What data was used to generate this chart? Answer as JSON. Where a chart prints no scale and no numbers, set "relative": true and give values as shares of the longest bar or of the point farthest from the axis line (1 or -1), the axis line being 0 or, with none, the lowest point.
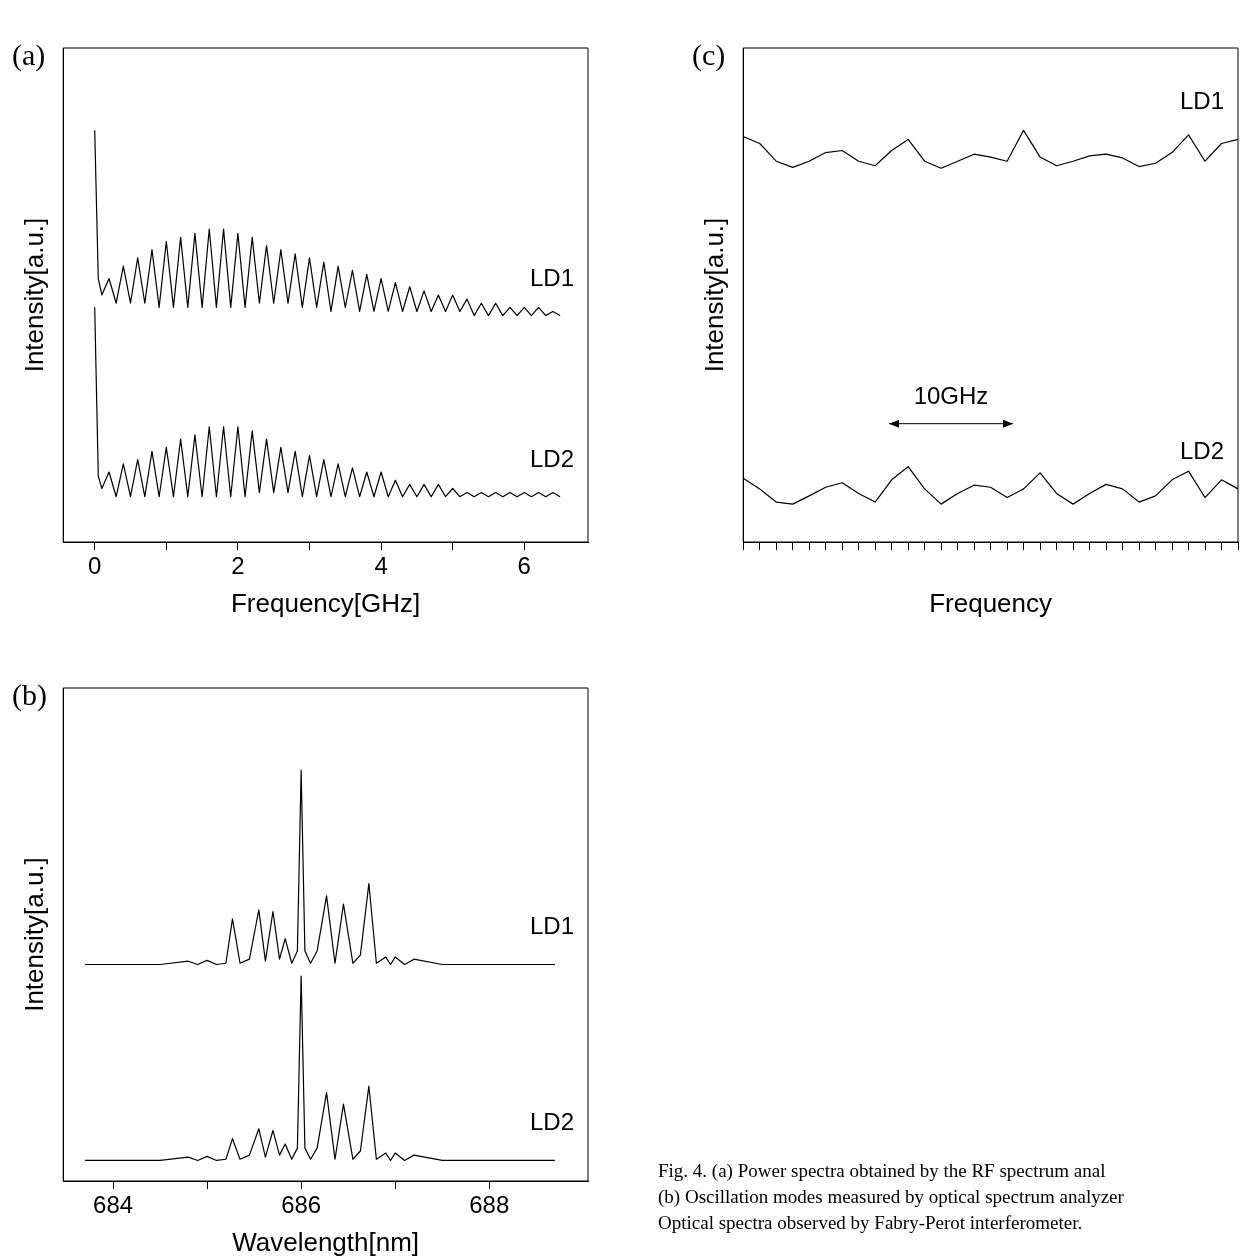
{
  "chart_data": [
    {
      "type": "line",
      "title": "(a)",
      "xlabel": "Frequency[GHz]",
      "ylabel": "Intensity[a.u.]",
      "relative": true,
      "xlim": [
        -0.44,
        6.89
      ],
      "xticks": [
        0,
        {
          "value": 1,
          "label": null
        },
        2,
        {
          "value": 3,
          "label": null
        },
        4,
        {
          "value": 5,
          "label": null
        },
        6
      ],
      "x": [
        0,
        0.05,
        0.1,
        0.2,
        0.3,
        0.4,
        0.5,
        0.6,
        0.7,
        0.8,
        0.9,
        1.0,
        1.1,
        1.2,
        1.3,
        1.4,
        1.5,
        1.6,
        1.7,
        1.8,
        1.9,
        2.0,
        2.1,
        2.2,
        2.3,
        2.4,
        2.5,
        2.6,
        2.7,
        2.8,
        2.9,
        3.0,
        3.1,
        3.2,
        3.3,
        3.4,
        3.5,
        3.6,
        3.7,
        3.8,
        3.9,
        4.0,
        4.1,
        4.2,
        4.3,
        4.4,
        4.5,
        4.6,
        4.7,
        4.8,
        4.9,
        5.0,
        5.1,
        5.2,
        5.3,
        5.4,
        5.5,
        5.6,
        5.7,
        5.8,
        5.9,
        6.0,
        6.1,
        6.2,
        6.3,
        6.4,
        6.5
      ],
      "series": [
        {
          "name": "LD1",
          "color": "#000000",
          "values": [
            1.0,
            0.64,
            0.6,
            0.64,
            0.58,
            0.67,
            0.58,
            0.69,
            0.58,
            0.71,
            0.57,
            0.73,
            0.57,
            0.74,
            0.57,
            0.75,
            0.57,
            0.76,
            0.57,
            0.76,
            0.57,
            0.75,
            0.57,
            0.74,
            0.58,
            0.72,
            0.58,
            0.71,
            0.58,
            0.7,
            0.57,
            0.69,
            0.57,
            0.68,
            0.56,
            0.67,
            0.57,
            0.66,
            0.56,
            0.65,
            0.56,
            0.64,
            0.56,
            0.63,
            0.56,
            0.62,
            0.56,
            0.61,
            0.56,
            0.6,
            0.56,
            0.6,
            0.56,
            0.59,
            0.55,
            0.58,
            0.55,
            0.58,
            0.55,
            0.57,
            0.55,
            0.57,
            0.55,
            0.57,
            0.55,
            0.56,
            0.55
          ]
        },
        {
          "name": "LD2",
          "color": "#000000",
          "values": [
            0.57,
            0.16,
            0.13,
            0.17,
            0.11,
            0.19,
            0.11,
            0.2,
            0.11,
            0.22,
            0.11,
            0.23,
            0.11,
            0.25,
            0.11,
            0.26,
            0.11,
            0.28,
            0.11,
            0.28,
            0.11,
            0.28,
            0.11,
            0.27,
            0.12,
            0.25,
            0.12,
            0.23,
            0.12,
            0.22,
            0.11,
            0.21,
            0.11,
            0.2,
            0.11,
            0.19,
            0.11,
            0.18,
            0.11,
            0.17,
            0.11,
            0.17,
            0.11,
            0.15,
            0.11,
            0.14,
            0.11,
            0.14,
            0.11,
            0.14,
            0.11,
            0.13,
            0.11,
            0.12,
            0.11,
            0.12,
            0.11,
            0.12,
            0.11,
            0.12,
            0.11,
            0.12,
            0.11,
            0.12,
            0.11,
            0.12,
            0.11
          ]
        }
      ]
    },
    {
      "type": "line",
      "title": "(c)",
      "xlabel": "Frequency",
      "ylabel": "Intensity[a.u.]",
      "relative": true,
      "annotations": [
        "10GHz"
      ],
      "categories": [
        null,
        null,
        null,
        null,
        null,
        null,
        null,
        null,
        null,
        null,
        null,
        null,
        null,
        null,
        null,
        null,
        null,
        null,
        null,
        null,
        null,
        null,
        null,
        null,
        null,
        null,
        null,
        null,
        null,
        null,
        null
      ],
      "series": [
        {
          "name": "LD1",
          "color": "#000000",
          "values": [
            0.985,
            0.968,
            0.925,
            0.91,
            0.925,
            0.946,
            0.951,
            0.925,
            0.914,
            0.951,
            0.978,
            0.925,
            0.908,
            0.925,
            0.942,
            0.935,
            0.925,
            1.0,
            0.935,
            0.914,
            0.925,
            0.938,
            0.942,
            0.933,
            0.912,
            0.92,
            0.946,
            0.989,
            0.925,
            0.968,
            0.978
          ]
        },
        {
          "name": "LD2",
          "color": "#000000",
          "values": [
            0.155,
            0.129,
            0.097,
            0.092,
            0.112,
            0.133,
            0.144,
            0.118,
            0.097,
            0.151,
            0.183,
            0.129,
            0.092,
            0.118,
            0.138,
            0.133,
            0.108,
            0.129,
            0.168,
            0.118,
            0.092,
            0.118,
            0.14,
            0.129,
            0.097,
            0.112,
            0.151,
            0.172,
            0.108,
            0.151,
            0.129
          ]
        }
      ]
    },
    {
      "type": "line",
      "title": "(b)",
      "xlabel": "Wavelength[nm]",
      "ylabel": "Intensity[a.u.]",
      "relative": true,
      "xlim": [
        683.47,
        689.05
      ],
      "xticks": [
        684,
        {
          "value": 685,
          "label": null
        },
        686,
        {
          "value": 687,
          "label": null
        },
        688
      ],
      "x": [
        683.7,
        684.5,
        684.8,
        684.9,
        685.0,
        685.1,
        685.2,
        685.27,
        685.35,
        685.45,
        685.55,
        685.62,
        685.7,
        685.77,
        685.83,
        685.9,
        685.96,
        686.0,
        686.04,
        686.1,
        686.17,
        686.27,
        686.36,
        686.45,
        686.55,
        686.63,
        686.72,
        686.8,
        686.9,
        686.95,
        687.0,
        687.1,
        687.2,
        687.5,
        688.0,
        688.7
      ],
      "series": [
        {
          "name": "LD1",
          "color": "#000000",
          "values": [
            0.527,
            0.527,
            0.535,
            0.527,
            0.537,
            0.527,
            0.53,
            0.638,
            0.53,
            0.54,
            0.66,
            0.535,
            0.656,
            0.54,
            0.59,
            0.53,
            0.56,
            1.0,
            0.56,
            0.53,
            0.56,
            0.694,
            0.53,
            0.674,
            0.53,
            0.55,
            0.724,
            0.53,
            0.545,
            0.527,
            0.545,
            0.527,
            0.54,
            0.527,
            0.527,
            0.527
          ]
        },
        {
          "name": "LD2",
          "color": "#000000",
          "values": [
            0.05,
            0.05,
            0.058,
            0.05,
            0.06,
            0.05,
            0.053,
            0.103,
            0.053,
            0.063,
            0.127,
            0.058,
            0.123,
            0.063,
            0.09,
            0.053,
            0.08,
            0.499,
            0.08,
            0.053,
            0.08,
            0.215,
            0.053,
            0.187,
            0.053,
            0.073,
            0.231,
            0.053,
            0.068,
            0.05,
            0.068,
            0.05,
            0.063,
            0.05,
            0.05,
            0.05
          ]
        }
      ]
    },
    {
      "type": "other",
      "annotations": [
        "Fig. 4.  (a) Power spectra obtained by the RF spectrum anal",
        "(b) Oscillation modes measured by optical spectrum analyzer",
        "Optical spectra observed by Fabry-Perot interferometer."
      ]
    }
  ]
}
